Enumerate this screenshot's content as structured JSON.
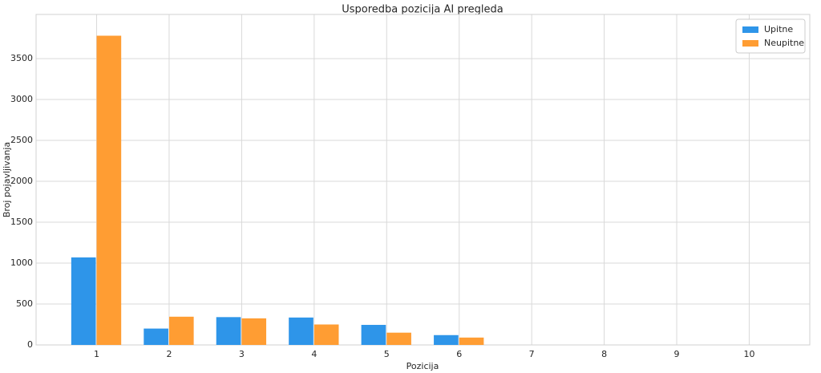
{
  "chart_data": {
    "type": "bar",
    "title": "Usporedba pozicija AI pregleda",
    "x_label": "Pozicija",
    "y_label": "Broj pojavljivanja",
    "x": [
      1,
      2,
      3,
      4,
      5,
      6,
      7,
      8,
      9,
      10
    ],
    "series": [
      {
        "name": "Upitne",
        "color": "#2e95e9",
        "values": [
          1070,
          200,
          340,
          335,
          245,
          120,
          0,
          0,
          0,
          0
        ]
      },
      {
        "name": "Neupitne",
        "color": "#ff9d33",
        "values": [
          3780,
          345,
          325,
          250,
          150,
          90,
          0,
          0,
          0,
          0
        ]
      }
    ],
    "xlim": [
      0.165,
      10.835
    ],
    "xticks": [
      1,
      2,
      3,
      4,
      5,
      6,
      7,
      8,
      9,
      10
    ],
    "ylim": [
      0,
      4040
    ],
    "yticks": [
      0,
      500,
      1000,
      1500,
      2000,
      2500,
      3000,
      3500
    ],
    "grid": true,
    "legend": "upper right"
  }
}
